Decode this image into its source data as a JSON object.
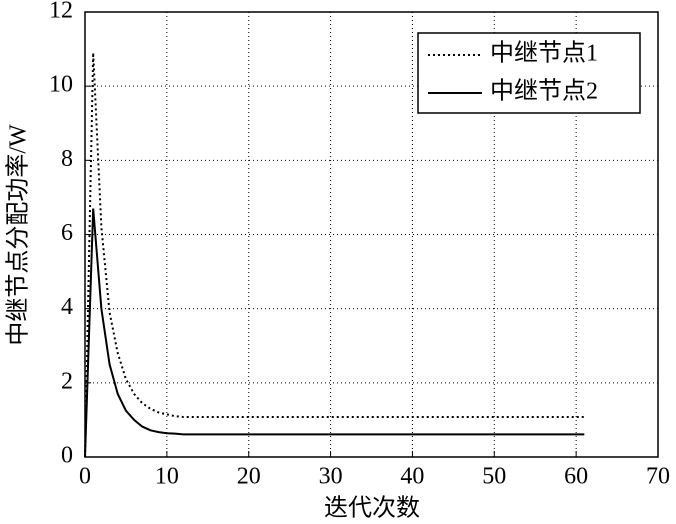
{
  "chart_data": {
    "type": "line",
    "xlabel": "迭代次数",
    "ylabel": "中继节点分配功率/W",
    "x": [
      0,
      1,
      2,
      3,
      4,
      5,
      6,
      7,
      8,
      9,
      10,
      11,
      12,
      61
    ],
    "series": [
      {
        "name": "中继节点1",
        "color": "#000000",
        "dash": "dotted",
        "values": [
          0,
          10.9,
          6.2,
          3.9,
          2.8,
          2.1,
          1.7,
          1.45,
          1.3,
          1.2,
          1.15,
          1.1,
          1.08,
          1.08
        ]
      },
      {
        "name": "中继节点2",
        "color": "#000000",
        "dash": "solid",
        "values": [
          0,
          6.7,
          4.0,
          2.5,
          1.7,
          1.25,
          1.0,
          0.82,
          0.72,
          0.67,
          0.64,
          0.63,
          0.61,
          0.61
        ]
      }
    ],
    "xlim": [
      0,
      70
    ],
    "xticks": [
      0,
      10,
      20,
      30,
      40,
      50,
      60,
      70
    ],
    "ylim": [
      0,
      12
    ],
    "yticks": [
      0,
      2,
      4,
      6,
      8,
      10,
      12
    ],
    "grid": true,
    "legend": "upper right"
  }
}
